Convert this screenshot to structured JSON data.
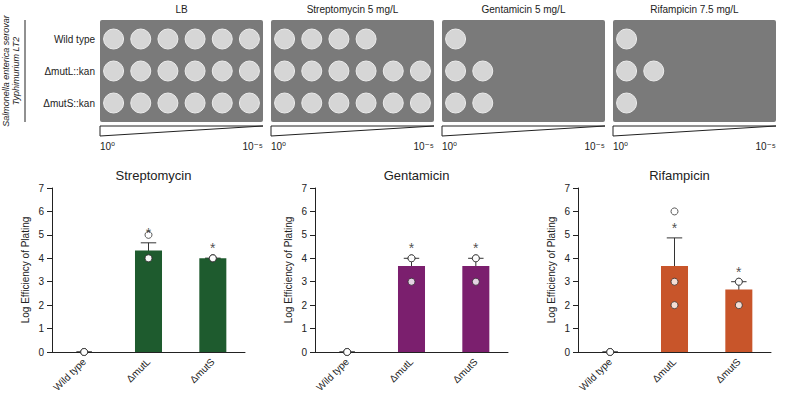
{
  "plates": {
    "side_label": "Salmonella enterica serovar Typhimurium LT2",
    "rows": [
      "Wild type",
      "ΔmutL::kan",
      "ΔmutS::kan"
    ],
    "dilution_start": "10⁰",
    "dilution_end": "10⁻⁵",
    "panels": [
      {
        "title": "LB",
        "growth": [
          6,
          6,
          6
        ]
      },
      {
        "title": "Streptomycin 5 mg/L",
        "growth": [
          4,
          6,
          6
        ]
      },
      {
        "title": "Gentamicin 5 mg/L",
        "growth": [
          1,
          2,
          2
        ]
      },
      {
        "title": "Rifampicin 7.5 mg/L",
        "growth": [
          1,
          2,
          1
        ]
      }
    ]
  },
  "chart_data": [
    {
      "type": "bar",
      "title": "Streptomycin",
      "y_label": "Log Efficiency of Plating",
      "categories": [
        "Wild type",
        "ΔmutL",
        "ΔmutS"
      ],
      "values": [
        0,
        4.33,
        4
      ],
      "error": [
        0,
        0.33,
        0
      ],
      "points": [
        [
          0,
          0,
          0
        ],
        [
          4,
          4,
          5
        ],
        [
          4,
          4,
          4
        ]
      ],
      "annotations": [
        null,
        "*",
        "*"
      ],
      "color": "#1e5b2e",
      "ylim": [
        0,
        7
      ],
      "yticks": [
        0,
        1,
        2,
        3,
        4,
        5,
        6,
        7
      ],
      "grid": false
    },
    {
      "type": "bar",
      "title": "Gentamicin",
      "y_label": "Log Efficiency of Plating",
      "categories": [
        "Wild type",
        "ΔmutL",
        "ΔmutS"
      ],
      "values": [
        0,
        3.67,
        3.67
      ],
      "error": [
        0,
        0.33,
        0.33
      ],
      "points": [
        [
          0,
          0,
          0
        ],
        [
          3,
          4,
          4
        ],
        [
          3,
          4,
          4
        ]
      ],
      "annotations": [
        null,
        "*",
        "*"
      ],
      "color": "#7b1f6e",
      "ylim": [
        0,
        7
      ],
      "yticks": [
        0,
        1,
        2,
        3,
        4,
        5,
        6,
        7
      ],
      "grid": false
    },
    {
      "type": "bar",
      "title": "Rifampicin",
      "y_label": "Log Efficiency of Plating",
      "categories": [
        "Wild type",
        "ΔmutL",
        "ΔmutS"
      ],
      "values": [
        0,
        3.67,
        2.67
      ],
      "error": [
        0,
        1.2,
        0.33
      ],
      "points": [
        [
          0,
          0,
          0
        ],
        [
          2,
          3,
          6
        ],
        [
          2,
          3,
          3
        ]
      ],
      "annotations": [
        null,
        "*",
        "*"
      ],
      "color": "#c8552a",
      "ylim": [
        0,
        7
      ],
      "yticks": [
        0,
        1,
        2,
        3,
        4,
        5,
        6,
        7
      ],
      "grid": false
    }
  ]
}
